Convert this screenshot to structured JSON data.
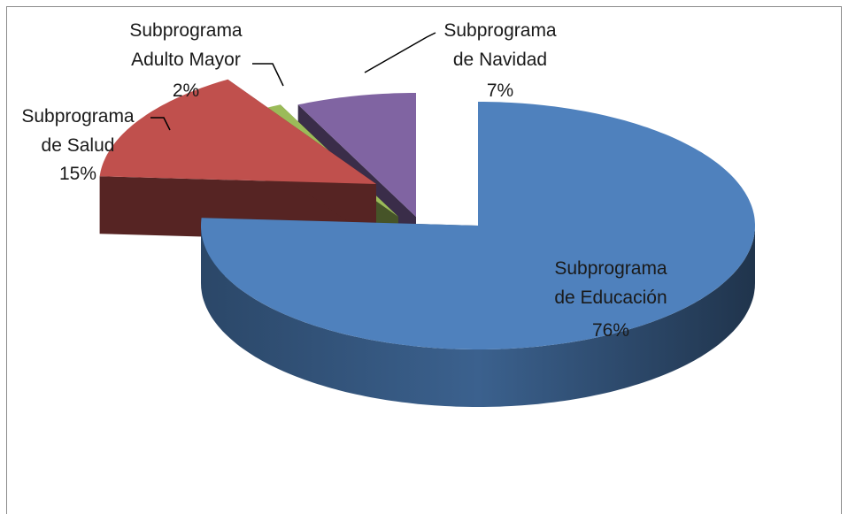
{
  "chart_data": {
    "type": "pie",
    "categories": [
      "Subprograma de Educación",
      "Subprograma de Salud",
      "Subprograma Adulto Mayor",
      "Subprograma de Navidad"
    ],
    "values": [
      76,
      15,
      2,
      7
    ],
    "value_labels": [
      "76%",
      "15%",
      "2%",
      "7%"
    ],
    "colors": [
      "#4f81bd",
      "#c0504d",
      "#9bbb59",
      "#8064a2"
    ],
    "three_d": true,
    "exploded": true
  }
}
